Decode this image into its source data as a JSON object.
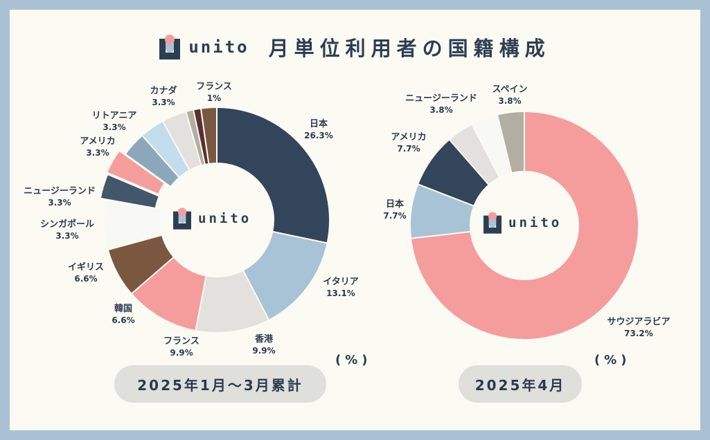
{
  "header": {
    "brand": "unito",
    "title": "月単位利用者の国籍構成"
  },
  "colors": {
    "navy": "#33455b",
    "light_blue": "#a8c3d6",
    "pale_gray": "#e2e1dd",
    "pink": "#f59c9c",
    "brown": "#7a5840",
    "off_white": "#f8f8f5",
    "slate": "#42566c",
    "gray_blue": "#8da7ba",
    "sky": "#c3dded",
    "beige": "#b3aea2",
    "dark_red": "#5b2f2f"
  },
  "chart_data": [
    {
      "type": "pie",
      "style": "donut",
      "center_label": "unito",
      "unit_label": "(%)",
      "period_label": "2025年1月〜3月累計",
      "slices": [
        {
          "label": "日本",
          "value": 26.3,
          "value_text": "26.3%",
          "color": "#33455b"
        },
        {
          "label": "イタリア",
          "value": 13.1,
          "value_text": "13.1%",
          "color": "#a8c3d6"
        },
        {
          "label": "香港",
          "value": 9.9,
          "value_text": "9.9%",
          "color": "#e2e1dd"
        },
        {
          "label": "フランス",
          "value": 9.9,
          "value_text": "9.9%",
          "color": "#f59c9c"
        },
        {
          "label": "韓国",
          "value": 6.6,
          "value_text": "6.6%",
          "color": "#7a5840"
        },
        {
          "label": "イギリス",
          "value": 6.6,
          "value_text": "6.6%",
          "color": "#f8f8f5"
        },
        {
          "label": "シンガポール",
          "value": 3.3,
          "value_text": "3.3%",
          "color": "#42566c"
        },
        {
          "label": "ニュージーランド",
          "value": 3.3,
          "value_text": "3.3%",
          "color": "#f59c9c"
        },
        {
          "label": "アメリカ",
          "value": 3.3,
          "value_text": "3.3%",
          "color": "#8da7ba"
        },
        {
          "label": "リトアニア",
          "value": 3.3,
          "value_text": "3.3%",
          "color": "#c3dded"
        },
        {
          "label": "カナダ",
          "value": 3.3,
          "value_text": "3.3%",
          "color": "#e2e1dd"
        },
        {
          "label": "フランス",
          "value": 1,
          "value_text": "1%",
          "color": "#b3aea2"
        },
        {
          "label": "",
          "value": 1,
          "value_text": "",
          "color": "#5b2f2f"
        },
        {
          "label": "",
          "value": 2.1,
          "value_text": "",
          "color": "#7a5840"
        }
      ]
    },
    {
      "type": "pie",
      "style": "donut",
      "center_label": "unito",
      "unit_label": "(%)",
      "period_label": "2025年4月",
      "slices": [
        {
          "label": "サウジアラビア",
          "value": 73.2,
          "value_text": "73.2%",
          "color": "#f59c9c"
        },
        {
          "label": "日本",
          "value": 7.7,
          "value_text": "7.7%",
          "color": "#a8c3d6"
        },
        {
          "label": "アメリカ",
          "value": 7.7,
          "value_text": "7.7%",
          "color": "#33455b"
        },
        {
          "label": "ニュージーランド",
          "value": 3.8,
          "value_text": "3.8%",
          "color": "#e2e1dd"
        },
        {
          "label": "",
          "value": 3.8,
          "value_text": "",
          "color": "#f8f8f5"
        },
        {
          "label": "スペイン",
          "value": 3.8,
          "value_text": "3.8%",
          "color": "#b3aea2"
        }
      ]
    }
  ]
}
